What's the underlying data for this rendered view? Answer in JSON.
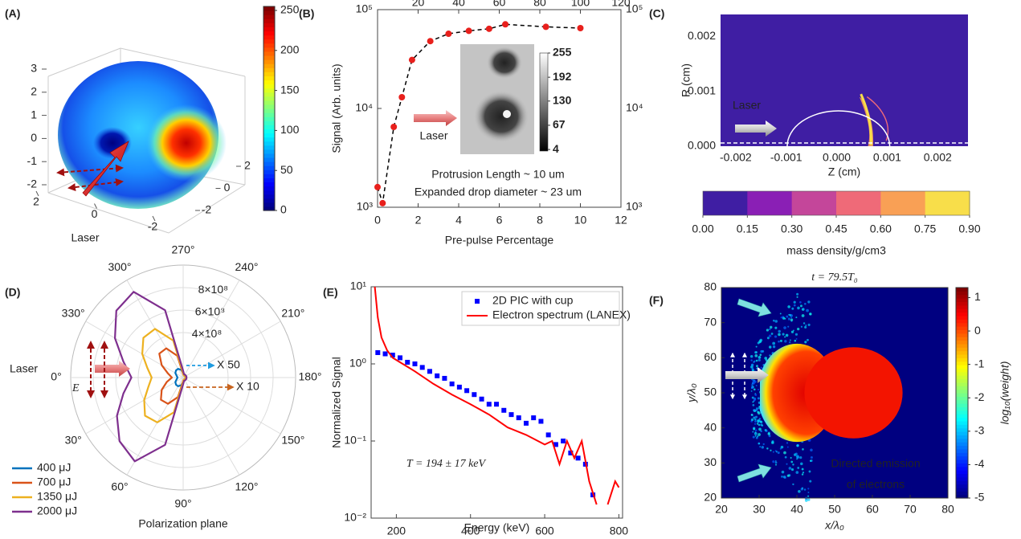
{
  "chart_data": [
    {
      "panel": "(A)",
      "type": "surface3d",
      "annotation": "Laser",
      "xlim": [
        -3,
        3
      ],
      "xticks": [
        -2,
        0,
        2
      ],
      "ylim": [
        -3,
        3
      ],
      "yticks": [
        -2,
        0,
        2
      ],
      "zlim": [
        -2,
        3
      ],
      "zticks": [
        -2,
        -1,
        0,
        1,
        2,
        3
      ],
      "colorbar": {
        "clim": [
          0,
          255
        ],
        "ticks": [
          0,
          50,
          100,
          150,
          200,
          250
        ],
        "colormap": "jet"
      }
    },
    {
      "panel": "(B)",
      "type": "line",
      "xlabel": "Pre-pulse Percentage",
      "ylabel": "Signal (Arb. units)",
      "x": [
        0,
        0.25,
        0.8,
        1.2,
        1.7,
        2.6,
        3.5,
        4.5,
        5.5,
        6.3,
        8.3,
        10
      ],
      "values": [
        1600,
        1100,
        6500,
        13000,
        31000,
        48000,
        57000,
        61000,
        64000,
        71000,
        67000,
        65000
      ],
      "color": "#e8201c",
      "line_color": "#000000",
      "line_style": "dashed",
      "marker": "circle",
      "xlim": [
        0,
        12
      ],
      "xticks": [
        0,
        2,
        4,
        6,
        8,
        10,
        12
      ],
      "x2lim": [
        0,
        120
      ],
      "x2ticks": [
        20,
        40,
        60,
        80,
        100,
        120
      ],
      "ylim": [
        1000,
        100000
      ],
      "yscale": "log",
      "right_ticks": true,
      "yticks": [
        {
          "value": 1000,
          "label": "10³"
        },
        {
          "value": 10000,
          "label": "10⁴"
        },
        {
          "value": 100000,
          "label": "10⁵"
        }
      ],
      "inset": {
        "clim": [
          0,
          255
        ],
        "ticks": [
          4,
          67,
          130,
          192,
          255
        ]
      },
      "annotations": [
        "Laser",
        "Protrusion Length ~ 10 um",
        "Expanded drop diameter ~ 23 um"
      ]
    },
    {
      "panel": "(C)",
      "type": "heatmap",
      "xlabel": "Z (cm)",
      "ylabel": "R (cm)",
      "annotation": "Laser",
      "xlim": [
        -0.0023,
        0.0026
      ],
      "xticks": [
        -0.002,
        -0.001,
        {
          "value": 0,
          "label": "0.000"
        },
        0.001,
        0.002
      ],
      "ylim": [
        0,
        0.0024
      ],
      "yticks": [
        {
          "value": 0,
          "label": "0.000"
        },
        0.001,
        0.002
      ],
      "colorbar": {
        "label": "mass density/g/cm3",
        "clim": [
          0,
          0.9
        ],
        "ticks": [
          {
            "value": 0,
            "label": "0.00"
          },
          0.15,
          {
            "value": 0.3,
            "label": "0.30"
          },
          0.45,
          {
            "value": 0.6,
            "label": "0.60"
          },
          0.75,
          {
            "value": 0.9,
            "label": "0.90"
          }
        ],
        "colors": [
          "#3f1ea3",
          "#8a1fb5",
          "#c4469a",
          "#ef6a78",
          "#f9a055",
          "#f8de4a"
        ]
      }
    },
    {
      "panel": "(D)",
      "type": "polar",
      "caption": "Polarization plane",
      "theta": [
        0,
        15,
        30,
        45,
        60,
        75,
        90,
        105,
        120,
        135,
        150,
        165,
        180,
        195,
        210,
        225,
        240,
        255,
        270,
        285,
        300,
        315,
        330,
        345
      ],
      "theta_ticks": [
        {
          "value": 0,
          "label": "0°"
        },
        {
          "value": 30,
          "label": "30°"
        },
        {
          "value": 60,
          "label": "60°"
        },
        {
          "value": 90,
          "label": "90°"
        },
        {
          "value": 120,
          "label": "120°"
        },
        {
          "value": 150,
          "label": "150°"
        },
        {
          "value": 180,
          "label": "180°"
        },
        {
          "value": 210,
          "label": "210°"
        },
        {
          "value": 240,
          "label": "240°"
        },
        {
          "value": 270,
          "label": "270°"
        },
        {
          "value": 300,
          "label": "300°"
        },
        {
          "value": 330,
          "label": "330°"
        }
      ],
      "rlim": [
        0,
        1000000000.0
      ],
      "rticks": [
        {
          "value": 400000000.0,
          "label": "4×10⁸"
        },
        {
          "value": 600000000.0,
          "label": "6×10⁸"
        },
        {
          "value": 800000000.0,
          "label": "8×10⁸"
        }
      ],
      "series": [
        {
          "name": "400 μJ",
          "color": "#0072bd",
          "values": [
            50000000.0,
            60000000.0,
            80000000.0,
            90000000.0,
            90000000.0,
            70000000.0,
            40000000.0,
            20000000.0,
            20000000.0,
            20000000.0,
            20000000.0,
            20000000.0,
            20000000.0,
            20000000.0,
            20000000.0,
            20000000.0,
            20000000.0,
            20000000.0,
            40000000.0,
            70000000.0,
            90000000.0,
            90000000.0,
            80000000.0,
            60000000.0
          ]
        },
        {
          "name": "700 μJ",
          "color": "#d95319",
          "values": [
            100000000.0,
            150000000.0,
            220000000.0,
            280000000.0,
            270000000.0,
            180000000.0,
            30000000.0,
            20000000.0,
            20000000.0,
            20000000.0,
            20000000.0,
            20000000.0,
            20000000.0,
            20000000.0,
            20000000.0,
            20000000.0,
            20000000.0,
            20000000.0,
            30000000.0,
            200000000.0,
            300000000.0,
            300000000.0,
            220000000.0,
            140000000.0
          ]
        },
        {
          "name": "1350 μJ",
          "color": "#edb120",
          "values": [
            280000000.0,
            320000000.0,
            400000000.0,
            480000000.0,
            460000000.0,
            320000000.0,
            40000000.0,
            20000000.0,
            20000000.0,
            20000000.0,
            20000000.0,
            20000000.0,
            20000000.0,
            20000000.0,
            20000000.0,
            20000000.0,
            20000000.0,
            20000000.0,
            40000000.0,
            340000000.0,
            500000000.0,
            500000000.0,
            420000000.0,
            330000000.0
          ]
        },
        {
          "name": "2000 μJ",
          "color": "#7e2f8e",
          "values": [
            460000000.0,
            550000000.0,
            680000000.0,
            800000000.0,
            860000000.0,
            620000000.0,
            60000000.0,
            30000000.0,
            30000000.0,
            30000000.0,
            30000000.0,
            30000000.0,
            30000000.0,
            30000000.0,
            30000000.0,
            30000000.0,
            30000000.0,
            30000000.0,
            60000000.0,
            620000000.0,
            880000000.0,
            840000000.0,
            700000000.0,
            550000000.0
          ]
        }
      ],
      "annotations": {
        "laser": "Laser",
        "field": "E⃗",
        "x50": "X 50",
        "x10": "X 10"
      }
    },
    {
      "panel": "(E)",
      "type": "line",
      "xlabel": "Energy (keV)",
      "ylabel": "Normalized Signal",
      "xlim": [
        132,
        810
      ],
      "xticks": [
        200,
        400,
        600,
        800
      ],
      "ylim": [
        0.01,
        10
      ],
      "yscale": "log",
      "yticks": [
        {
          "value": 0.01,
          "label": "10⁻²"
        },
        {
          "value": 0.1,
          "label": "10⁻¹"
        },
        {
          "value": 1,
          "label": "10⁰"
        },
        {
          "value": 10,
          "label": "10¹"
        }
      ],
      "annotations": [
        "T = 194 ± 17 keV"
      ],
      "legend": "upper right",
      "series": [
        {
          "name": "2D PIC with cup",
          "color": "#0000ff",
          "marker": "square",
          "line_style": "none",
          "x": [
            150,
            170,
            190,
            210,
            230,
            250,
            270,
            290,
            310,
            330,
            350,
            370,
            390,
            410,
            430,
            450,
            470,
            490,
            510,
            530,
            550,
            570,
            590,
            610,
            630,
            650,
            670,
            690,
            710,
            730
          ],
          "values": [
            1.4,
            1.35,
            1.3,
            1.2,
            1.05,
            1.0,
            0.9,
            0.8,
            0.7,
            0.65,
            0.55,
            0.5,
            0.45,
            0.4,
            0.35,
            0.3,
            0.3,
            0.25,
            0.22,
            0.2,
            0.17,
            0.2,
            0.18,
            0.12,
            0.09,
            0.1,
            0.07,
            0.06,
            0.05,
            0.02
          ]
        },
        {
          "name": "Electron spectrum (LANEX)",
          "color": "#ff0000",
          "line_style": "solid",
          "x": [
            142,
            150,
            160,
            175,
            190,
            210,
            250,
            300,
            350,
            400,
            450,
            500,
            550,
            600,
            620,
            640,
            660,
            680,
            700,
            720,
            740,
            755,
            770,
            790,
            800
          ],
          "values": [
            10,
            4,
            2.2,
            1.5,
            1.2,
            1.05,
            0.8,
            0.55,
            0.4,
            0.3,
            0.22,
            0.15,
            0.12,
            0.09,
            0.1,
            0.05,
            0.1,
            0.06,
            0.1,
            0.03,
            0.015,
            null,
            0.015,
            0.03,
            0.025
          ]
        }
      ]
    },
    {
      "panel": "(F)",
      "type": "heatmap",
      "title": "t = 79.5T₀",
      "xlabel": "x/λ₀",
      "ylabel": "y/λ₀",
      "xlim": [
        20,
        80
      ],
      "xticks": [
        20,
        30,
        40,
        50,
        60,
        70,
        80
      ],
      "ylim": [
        20,
        80
      ],
      "yticks": [
        20,
        30,
        40,
        50,
        60,
        70,
        80
      ],
      "annotations": [
        "Directed emission",
        "of electrons"
      ],
      "colorbar": {
        "label": "log₁₀(weight)",
        "clim": [
          -5,
          1.3
        ],
        "ticks": [
          -5,
          -4,
          -3,
          -2,
          -1,
          0,
          1
        ],
        "colormap": "jet"
      }
    }
  ]
}
